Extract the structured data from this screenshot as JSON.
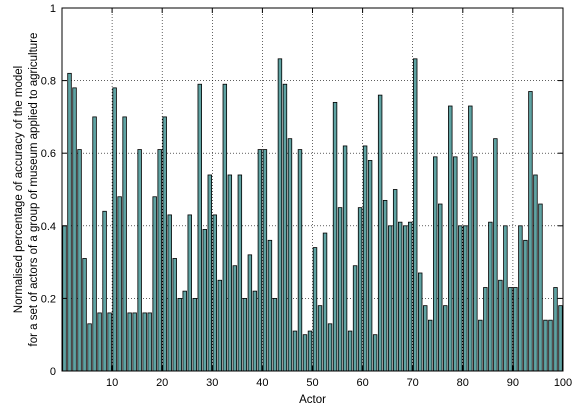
{
  "chart_data": {
    "type": "bar",
    "xlabel": "Actor",
    "ylabel_lines": [
      "Normalised percentage of accuracy of the model",
      "for a set of actors of a group of museum applied to agriculture"
    ],
    "xlim": [
      0,
      100
    ],
    "ylim": [
      0,
      1
    ],
    "xticks": [
      10,
      20,
      30,
      40,
      50,
      60,
      70,
      80,
      90,
      100
    ],
    "yticks": [
      0,
      0.2,
      0.4,
      0.6,
      0.8,
      1
    ],
    "grid": true,
    "bar_color": "#5fa3a3",
    "x": [
      1,
      2,
      3,
      4,
      5,
      6,
      7,
      8,
      9,
      10,
      11,
      12,
      13,
      14,
      15,
      16,
      17,
      18,
      19,
      20,
      21,
      22,
      23,
      24,
      25,
      26,
      27,
      28,
      29,
      30,
      31,
      32,
      33,
      34,
      35,
      36,
      37,
      38,
      39,
      40,
      41,
      42,
      43,
      44,
      45,
      46,
      47,
      48,
      49,
      50,
      51,
      52,
      53,
      54,
      55,
      56,
      57,
      58,
      59,
      60,
      61,
      62,
      63,
      64,
      65,
      66,
      67,
      68,
      69,
      70,
      71,
      72,
      73,
      74,
      75,
      76,
      77,
      78,
      79,
      80,
      81,
      82,
      83,
      84,
      85,
      86,
      87,
      88,
      89,
      90,
      91,
      92,
      93,
      94,
      95,
      96,
      97,
      98,
      99,
      100
    ],
    "values": [
      0.4,
      0.82,
      0.78,
      0.61,
      0.31,
      0.13,
      0.7,
      0.16,
      0.44,
      0.16,
      0.78,
      0.48,
      0.7,
      0.16,
      0.16,
      0.61,
      0.16,
      0.16,
      0.48,
      0.61,
      0.7,
      0.43,
      0.31,
      0.2,
      0.22,
      0.43,
      0.2,
      0.79,
      0.39,
      0.54,
      0.43,
      0.25,
      0.79,
      0.54,
      0.29,
      0.54,
      0.2,
      0.32,
      0.22,
      0.61,
      0.61,
      0.36,
      0.2,
      0.86,
      0.79,
      0.64,
      0.11,
      0.61,
      0.1,
      0.11,
      0.34,
      0.18,
      0.38,
      0.13,
      0.74,
      0.45,
      0.62,
      0.11,
      0.29,
      0.45,
      0.62,
      0.58,
      0.1,
      0.76,
      0.47,
      0.4,
      0.5,
      0.41,
      0.4,
      0.41,
      0.86,
      0.27,
      0.18,
      0.14,
      0.59,
      0.46,
      0.18,
      0.73,
      0.59,
      0.4,
      0.4,
      0.73,
      0.59,
      0.14,
      0.23,
      0.41,
      0.64,
      0.25,
      0.4,
      0.23,
      0.23,
      0.4,
      0.36,
      0.77,
      0.54,
      0.46,
      0.14,
      0.14,
      0.23,
      0.18
    ]
  }
}
